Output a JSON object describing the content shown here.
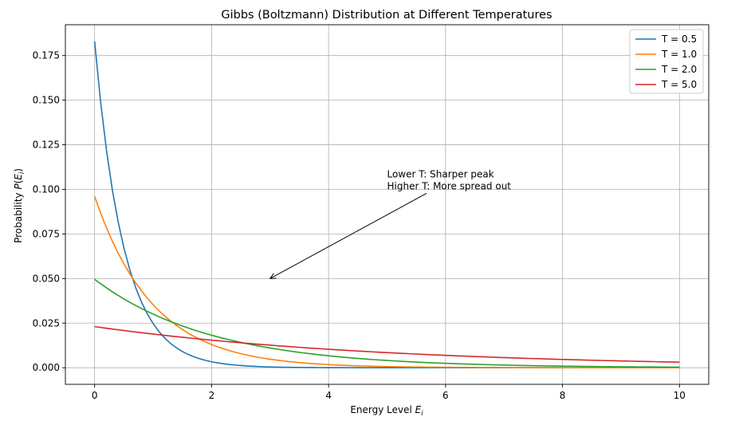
{
  "chart_data": {
    "type": "line",
    "title": "Gibbs (Boltzmann) Distribution at Different Temperatures",
    "xlabel": "Energy Level E_i",
    "ylabel": "Probability P(E_i)",
    "xlim": [
      -0.5,
      10.5
    ],
    "ylim": [
      -0.0093,
      0.1923
    ],
    "x_ticks": [
      0,
      2,
      4,
      6,
      8,
      10
    ],
    "x_tick_labels": [
      "0",
      "2",
      "4",
      "6",
      "8",
      "10"
    ],
    "y_ticks": [
      0.0,
      0.025,
      0.05,
      0.075,
      0.1,
      0.125,
      0.15,
      0.175
    ],
    "y_tick_labels": [
      "0.000",
      "0.025",
      "0.050",
      "0.075",
      "0.100",
      "0.125",
      "0.150",
      "0.175"
    ],
    "grid": true,
    "legend_position": "top-right",
    "x_range": [
      0,
      10
    ],
    "num_points": 100,
    "series": [
      {
        "name": "T = 0.5",
        "temperature": 0.5,
        "color": "#1f77b4"
      },
      {
        "name": "T = 1.0",
        "temperature": 1.0,
        "color": "#ff7f0e"
      },
      {
        "name": "T = 2.0",
        "temperature": 2.0,
        "color": "#2ca02c"
      },
      {
        "name": "T = 5.0",
        "temperature": 5.0,
        "color": "#d62728"
      }
    ],
    "annotation": {
      "lines": [
        "Lower T: Sharper peak",
        "Higher T: More spread out"
      ],
      "arrow_target": [
        3,
        0.05
      ],
      "text_anchor": [
        5,
        0.1
      ]
    }
  }
}
